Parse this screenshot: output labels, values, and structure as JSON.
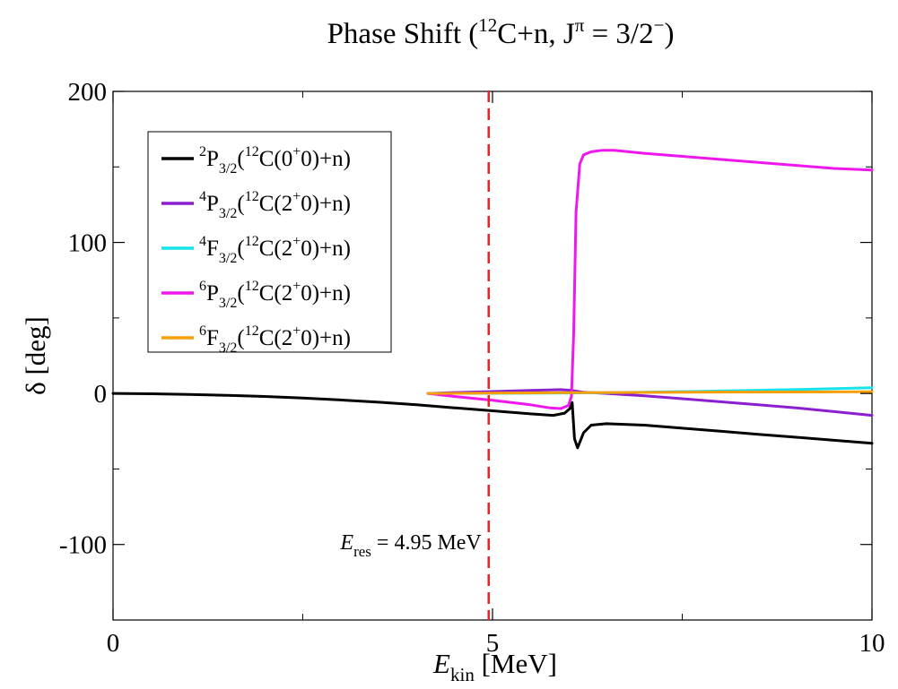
{
  "chart_data": {
    "type": "line",
    "title": "Phase Shift (¹²C+n, Jπ = 3/2−)",
    "title_parts": {
      "prefix": "Phase Shift (",
      "mass": "12",
      "element": "C+n, J",
      "parity_sup": "π",
      "value": " = 3/2",
      "parity": "−",
      "suffix": ")"
    },
    "xlabel": "E_kin [MeV]",
    "xlabel_parts": {
      "main": "E",
      "sub": "kin",
      "unit": " [MeV]"
    },
    "ylabel": "δ [deg]",
    "xlim": [
      0,
      10
    ],
    "ylim": [
      -150,
      200
    ],
    "xticks": [
      0,
      5,
      10
    ],
    "xticklabels": [
      "0",
      "5",
      "10"
    ],
    "yticks": [
      -100,
      0,
      100,
      200
    ],
    "yticklabels": [
      "-100",
      "0",
      "100",
      "200"
    ],
    "grid": false,
    "legend_position": "upper-left",
    "annotation": {
      "text": "E_res = 4.95 MeV",
      "parts": {
        "main": "E",
        "sub": "res",
        "rest": " = 4.95 MeV"
      },
      "x": 4.95,
      "color": "#e8262a",
      "style": "dashed"
    },
    "series": [
      {
        "name": "²P3/2(¹²C(0⁺0)+n)",
        "label": {
          "l": "2",
          "orb": "P",
          "j": "3/2",
          "core": "12",
          "state": "0"
        },
        "color": "#000000",
        "x": [
          0,
          0.5,
          1,
          1.5,
          2,
          2.5,
          3,
          3.5,
          4,
          4.5,
          5,
          5.5,
          5.8,
          5.95,
          6.02,
          6.05,
          6.08,
          6.12,
          6.2,
          6.3,
          6.5,
          7,
          7.5,
          8,
          8.5,
          9,
          9.5,
          10
        ],
        "y": [
          0,
          -0.2,
          -0.6,
          -1.2,
          -2,
          -3,
          -4.3,
          -5.8,
          -7.5,
          -9.5,
          -11.5,
          -13.5,
          -14.5,
          -13,
          -10,
          -6,
          -30,
          -36,
          -26,
          -21,
          -20,
          -21,
          -23,
          -25,
          -27,
          -29,
          -31,
          -33
        ]
      },
      {
        "name": "⁴P3/2(¹²C(2⁺0)+n)",
        "label": {
          "l": "4",
          "orb": "P",
          "j": "3/2",
          "core": "12",
          "state": "2"
        },
        "color": "#8b1fd0",
        "x": [
          4.15,
          4.5,
          5,
          5.5,
          5.9,
          6.05,
          6.2,
          6.5,
          7,
          7.5,
          8,
          8.5,
          9,
          9.5,
          10
        ],
        "y": [
          0,
          0.6,
          1.3,
          2,
          2.5,
          2,
          0.8,
          0,
          -1.5,
          -3.5,
          -5.5,
          -7.5,
          -9.5,
          -12,
          -14.5
        ]
      },
      {
        "name": "⁴F3/2(¹²C(2⁺0)+n)",
        "label": {
          "l": "4",
          "orb": "F",
          "j": "3/2",
          "core": "12",
          "state": "2"
        },
        "color": "#17e4ea",
        "x": [
          4.15,
          5,
          6,
          6.5,
          7,
          8,
          9,
          10
        ],
        "y": [
          0,
          0.1,
          0.3,
          0.5,
          0.8,
          1.6,
          2.6,
          3.8
        ]
      },
      {
        "name": "⁶P3/2(¹²C(2⁺0)+n)",
        "label": {
          "l": "6",
          "orb": "P",
          "j": "3/2",
          "core": "12",
          "state": "2"
        },
        "color": "#ee18ee",
        "x": [
          4.15,
          4.5,
          5,
          5.5,
          5.75,
          5.9,
          6.0,
          6.04,
          6.07,
          6.1,
          6.15,
          6.2,
          6.3,
          6.45,
          6.6,
          7,
          7.5,
          8,
          8.5,
          9,
          9.5,
          10
        ],
        "y": [
          0,
          -2,
          -4.5,
          -7.5,
          -9.5,
          -10,
          -8,
          -2,
          40,
          120,
          152,
          158,
          160,
          161,
          161,
          159,
          157,
          155,
          153,
          151,
          149,
          148
        ]
      },
      {
        "name": "⁶F3/2(¹²C(2⁺0)+n)",
        "label": {
          "l": "6",
          "orb": "F",
          "j": "3/2",
          "core": "12",
          "state": "2"
        },
        "color": "#f5a00a",
        "x": [
          4.15,
          5,
          6,
          7,
          8,
          9,
          10
        ],
        "y": [
          0,
          0.2,
          0.5,
          0.7,
          0.9,
          1.0,
          1.1
        ]
      }
    ]
  }
}
